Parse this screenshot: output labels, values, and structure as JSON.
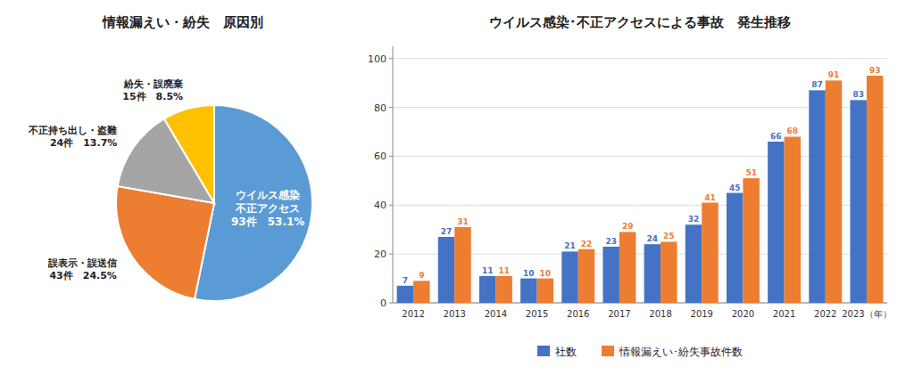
{
  "chart_data": [
    {
      "type": "pie",
      "title": "情報漏えい・紛失　原因別",
      "categories": [
        "ウイルス感染\n不正アクセス",
        "誤表示・誤送信",
        "不正持ち出し・盗難",
        "紛失・誤廃棄"
      ],
      "values": [
        53.1,
        24.5,
        13.7,
        8.5
      ],
      "value_labels": [
        "93件　53.1%",
        "43件　24.5%",
        "24件　13.7%",
        "15件　8.5%"
      ],
      "colors": [
        "#5b9bd5",
        "#ed7d31",
        "#a5a5a5",
        "#ffc000"
      ],
      "data_labels": true
    },
    {
      "type": "bar",
      "title": "ウイルス感染･不正アクセスによる事故　発生推移",
      "categories": [
        "2012",
        "2013",
        "2014",
        "2015",
        "2016",
        "2017",
        "2018",
        "2019",
        "2020",
        "2021",
        "2022",
        "2023（年）"
      ],
      "series": [
        {
          "name": "社数",
          "color": "#4472c4",
          "values": [
            7,
            27,
            11,
            10,
            21,
            23,
            24,
            32,
            45,
            66,
            87,
            83
          ]
        },
        {
          "name": "情報漏えい･紛失事故件数",
          "color": "#ed7d31",
          "values": [
            9,
            31,
            11,
            10,
            22,
            29,
            25,
            41,
            51,
            68,
            91,
            93
          ]
        }
      ],
      "ylim": [
        0,
        105
      ],
      "yticks": [
        0,
        20,
        40,
        60,
        80,
        100
      ],
      "grid": true,
      "data_labels": true,
      "legend": "bottom"
    }
  ]
}
